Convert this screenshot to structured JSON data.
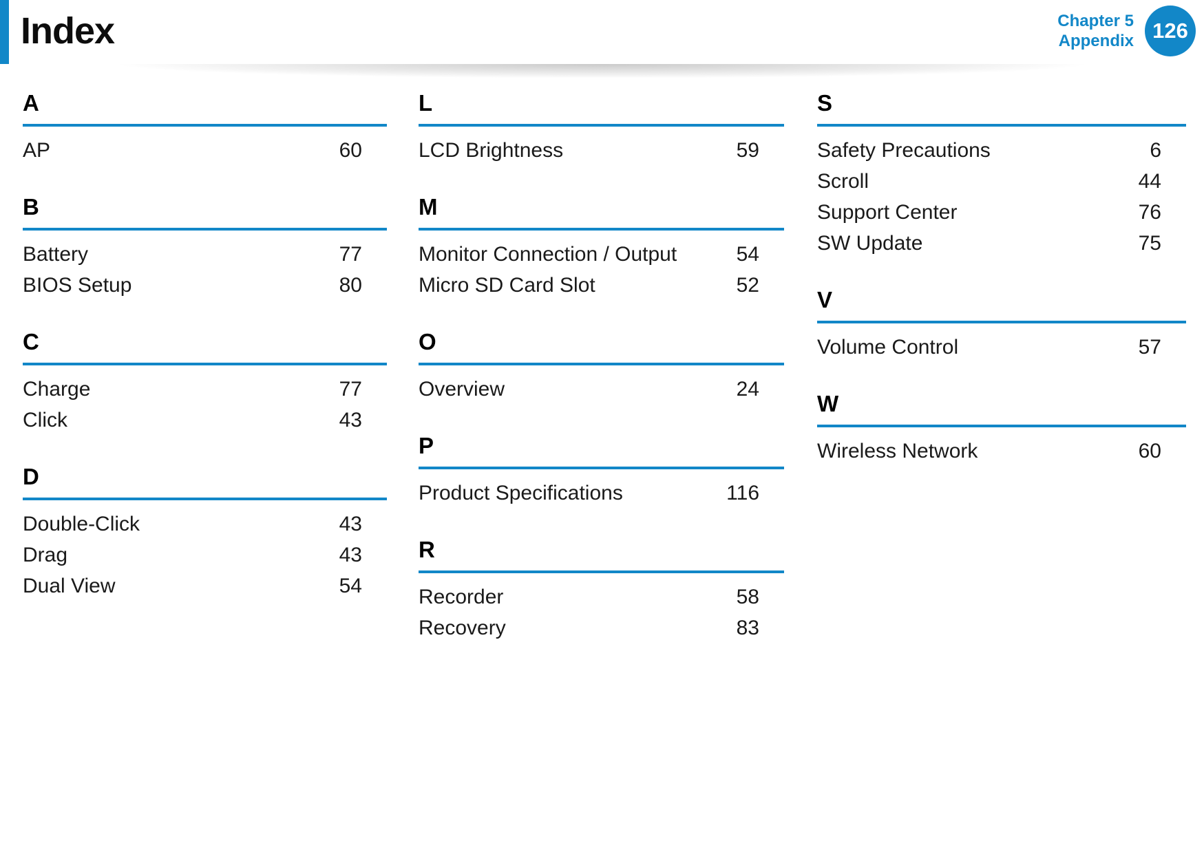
{
  "header": {
    "title": "Index",
    "chapter_line1": "Chapter 5",
    "chapter_line2": "Appendix",
    "page_number": "126"
  },
  "colors": {
    "accent": "#1287c8"
  },
  "columns": [
    {
      "sections": [
        {
          "letter": "A",
          "entries": [
            {
              "label": "AP",
              "page": "60"
            }
          ]
        },
        {
          "letter": "B",
          "entries": [
            {
              "label": "Battery",
              "page": "77"
            },
            {
              "label": "BIOS Setup",
              "page": "80"
            }
          ]
        },
        {
          "letter": "C",
          "entries": [
            {
              "label": "Charge",
              "page": "77"
            },
            {
              "label": "Click",
              "page": "43"
            }
          ]
        },
        {
          "letter": "D",
          "entries": [
            {
              "label": "Double-Click",
              "page": "43"
            },
            {
              "label": "Drag",
              "page": "43"
            },
            {
              "label": "Dual View",
              "page": "54"
            }
          ]
        }
      ]
    },
    {
      "sections": [
        {
          "letter": "L",
          "entries": [
            {
              "label": "LCD Brightness",
              "page": "59"
            }
          ]
        },
        {
          "letter": "M",
          "entries": [
            {
              "label": "Monitor Connection / Output",
              "page": "54"
            },
            {
              "label": "Micro SD Card Slot",
              "page": "52"
            }
          ]
        },
        {
          "letter": "O",
          "entries": [
            {
              "label": "Overview",
              "page": "24"
            }
          ]
        },
        {
          "letter": "P",
          "entries": [
            {
              "label": "Product Specifications",
              "page": "116"
            }
          ]
        },
        {
          "letter": "R",
          "entries": [
            {
              "label": "Recorder",
              "page": "58"
            },
            {
              "label": "Recovery",
              "page": "83"
            }
          ]
        }
      ]
    },
    {
      "sections": [
        {
          "letter": "S",
          "entries": [
            {
              "label": "Safety Precautions",
              "page": "6"
            },
            {
              "label": "Scroll",
              "page": "44"
            },
            {
              "label": "Support Center",
              "page": "76"
            },
            {
              "label": "SW Update",
              "page": "75"
            }
          ]
        },
        {
          "letter": "V",
          "entries": [
            {
              "label": "Volume Control",
              "page": "57"
            }
          ]
        },
        {
          "letter": "W",
          "entries": [
            {
              "label": "Wireless Network",
              "page": "60"
            }
          ]
        }
      ]
    }
  ]
}
